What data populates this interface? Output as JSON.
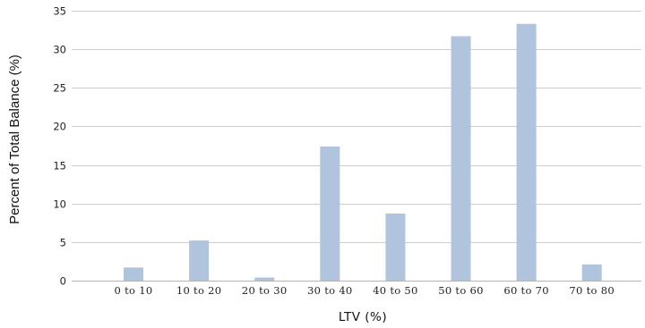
{
  "chart_data": {
    "type": "bar",
    "title": "",
    "xlabel": "LTV (%)",
    "ylabel": "Percent of Total Balance (%)",
    "categories": [
      "0 to 10",
      "10 to 20",
      "20 to 30",
      "30 to 40",
      "40 to 50",
      "50 to 60",
      "60 to 70",
      "70 to 80"
    ],
    "values": [
      1.7,
      5.2,
      0.4,
      17.4,
      8.7,
      31.7,
      33.3,
      2.1
    ],
    "ylim": [
      0,
      35
    ],
    "yticks": [
      0,
      5,
      10,
      15,
      20,
      25,
      30,
      35
    ],
    "grid": "horizontal",
    "legend": "none",
    "colors": {
      "bar": "#b0c4de",
      "grid": "#cccccc",
      "axis": "#b5b5b5"
    }
  }
}
